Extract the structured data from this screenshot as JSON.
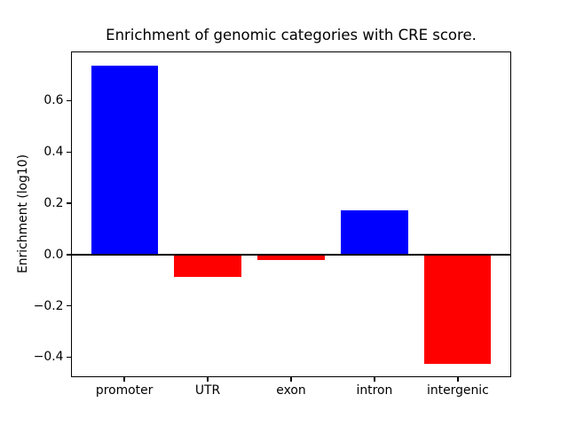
{
  "chart_data": {
    "type": "bar",
    "title": "Enrichment of genomic categories with CRE score.",
    "xlabel": "",
    "ylabel": "Enrichment (log10)",
    "categories": [
      "promoter",
      "UTR",
      "exon",
      "intron",
      "intergenic"
    ],
    "values": [
      0.735,
      -0.088,
      -0.021,
      0.173,
      -0.425
    ],
    "bar_colors": [
      "#0000ff",
      "#ff0000",
      "#ff0000",
      "#0000ff",
      "#ff0000"
    ],
    "positive_color": "#0000ff",
    "negative_color": "#ff0000",
    "ylim": [
      -0.478,
      0.792
    ],
    "yticks": [
      0.6,
      0.4,
      0.2,
      0.0,
      -0.2,
      -0.4
    ],
    "ytick_labels": [
      "0.6",
      "0.4",
      "0.2",
      "0.0",
      "−0.2",
      "−0.4"
    ],
    "grid": false,
    "legend": "none",
    "zero_line": true,
    "bar_width_fraction": 0.8,
    "background_color": "#ffffff",
    "axis_color": "#000000"
  }
}
